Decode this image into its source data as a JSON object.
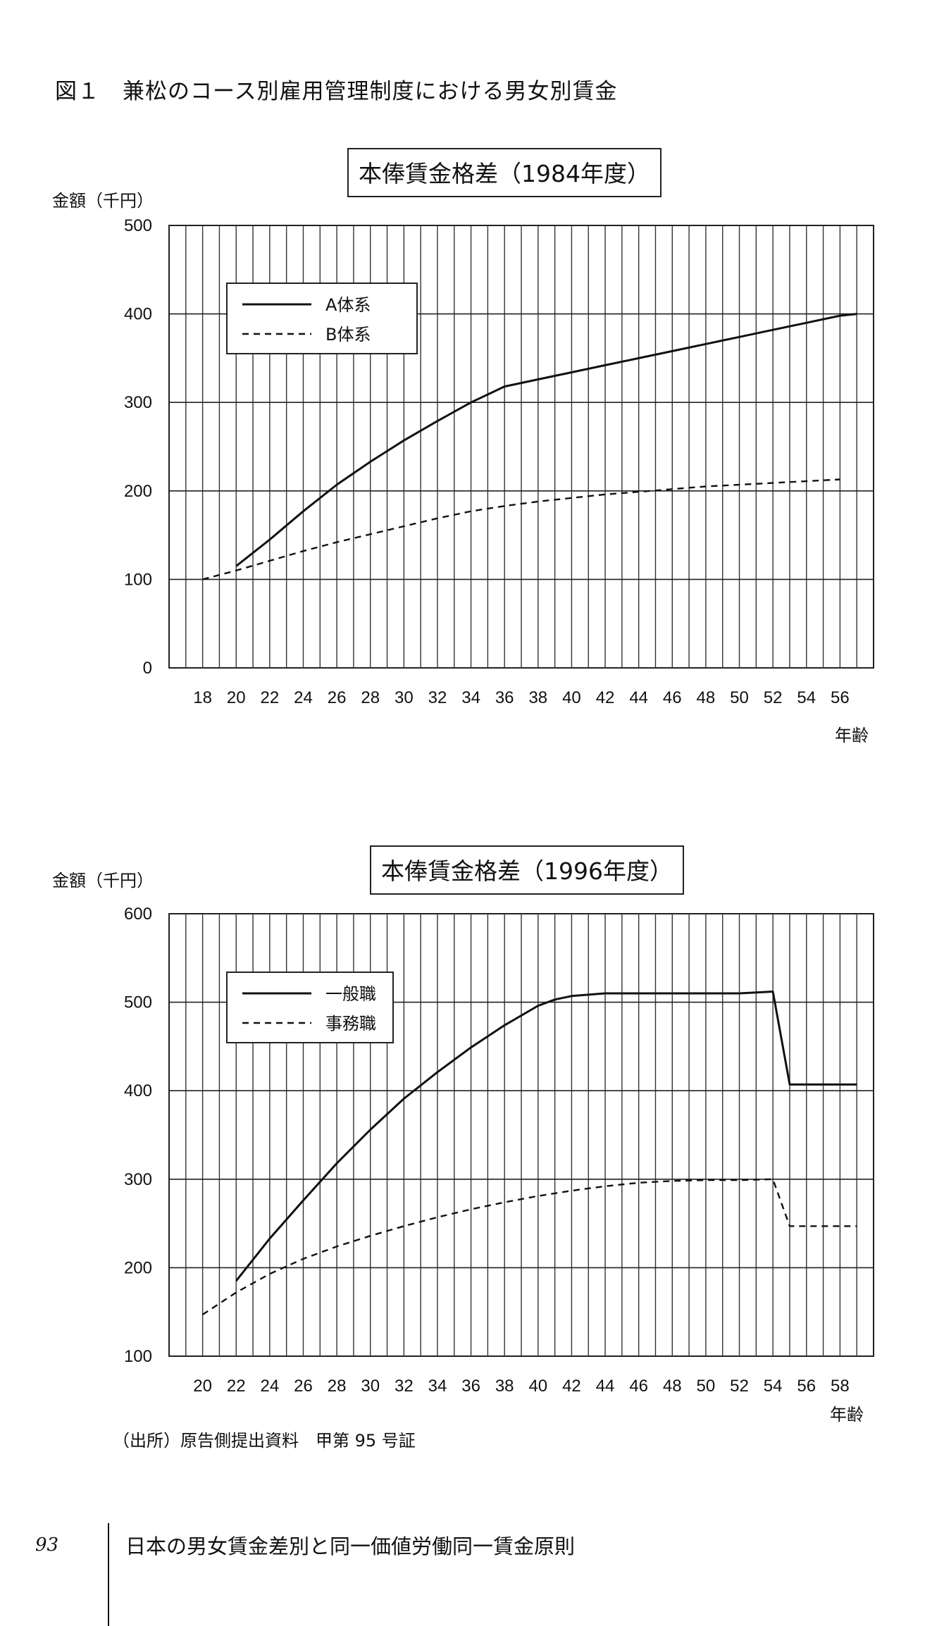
{
  "figure_title": "図１　兼松のコース別雇用管理制度における男女別賃金",
  "source": "（出所）原告側提出資料　甲第 95 号証",
  "footer": {
    "page_number": "93",
    "book_title": "日本の男女賃金差別と同一価値労働同一賃金原則"
  },
  "chart_data": [
    {
      "type": "line",
      "title": "本俸賃金格差（1984年度）",
      "ylabel": "金額（千円）",
      "xlabel": "年齢",
      "ylim": [
        0,
        500
      ],
      "yticks": [
        0,
        100,
        200,
        300,
        400,
        500
      ],
      "xlim": [
        16,
        58
      ],
      "xticks": [
        18,
        20,
        22,
        24,
        26,
        28,
        30,
        32,
        34,
        36,
        38,
        40,
        42,
        44,
        46,
        48,
        50,
        52,
        54,
        56
      ],
      "grid": true,
      "legend": "top-left",
      "series": [
        {
          "name": "A体系",
          "style": "solid",
          "x": [
            20,
            22,
            24,
            26,
            28,
            30,
            32,
            34,
            36,
            38,
            40,
            42,
            44,
            46,
            48,
            50,
            52,
            54,
            56,
            57
          ],
          "values": [
            115,
            145,
            177,
            207,
            233,
            257,
            279,
            300,
            318,
            326,
            334,
            342,
            350,
            358,
            366,
            374,
            382,
            390,
            398,
            400
          ]
        },
        {
          "name": "B体系",
          "style": "dashed",
          "x": [
            18,
            20,
            22,
            24,
            26,
            28,
            30,
            32,
            34,
            36,
            38,
            40,
            42,
            44,
            46,
            48,
            50,
            52,
            54,
            56
          ],
          "values": [
            100,
            110,
            121,
            132,
            142,
            151,
            160,
            169,
            177,
            183,
            188,
            192,
            196,
            199,
            202,
            205,
            207,
            209,
            211,
            213
          ]
        }
      ]
    },
    {
      "type": "line",
      "title": "本俸賃金格差（1996年度）",
      "ylabel": "金額（千円）",
      "xlabel": "年齢",
      "ylim": [
        100,
        600
      ],
      "yticks": [
        100,
        200,
        300,
        400,
        500,
        600
      ],
      "xlim": [
        18,
        60
      ],
      "xticks": [
        20,
        22,
        24,
        26,
        28,
        30,
        32,
        34,
        36,
        38,
        40,
        42,
        44,
        46,
        48,
        50,
        52,
        54,
        56,
        58
      ],
      "grid": true,
      "legend": "top-left",
      "series": [
        {
          "name": "一般職",
          "style": "solid",
          "x": [
            22,
            24,
            26,
            28,
            30,
            32,
            34,
            36,
            38,
            40,
            41,
            42,
            44,
            46,
            48,
            50,
            52,
            54,
            55,
            56,
            58,
            59
          ],
          "values": [
            185,
            233,
            276,
            318,
            356,
            391,
            421,
            449,
            474,
            496,
            503,
            507,
            510,
            510,
            510,
            510,
            510,
            512,
            407,
            407,
            407,
            407
          ]
        },
        {
          "name": "事務職",
          "style": "dashed",
          "x": [
            20,
            22,
            24,
            26,
            28,
            30,
            32,
            34,
            36,
            38,
            40,
            42,
            44,
            46,
            48,
            50,
            52,
            54,
            55,
            56,
            58,
            59
          ],
          "values": [
            147,
            172,
            193,
            210,
            224,
            236,
            247,
            257,
            266,
            274,
            281,
            287,
            292,
            296,
            298,
            299,
            299,
            300,
            247,
            247,
            247,
            247
          ]
        }
      ]
    }
  ]
}
